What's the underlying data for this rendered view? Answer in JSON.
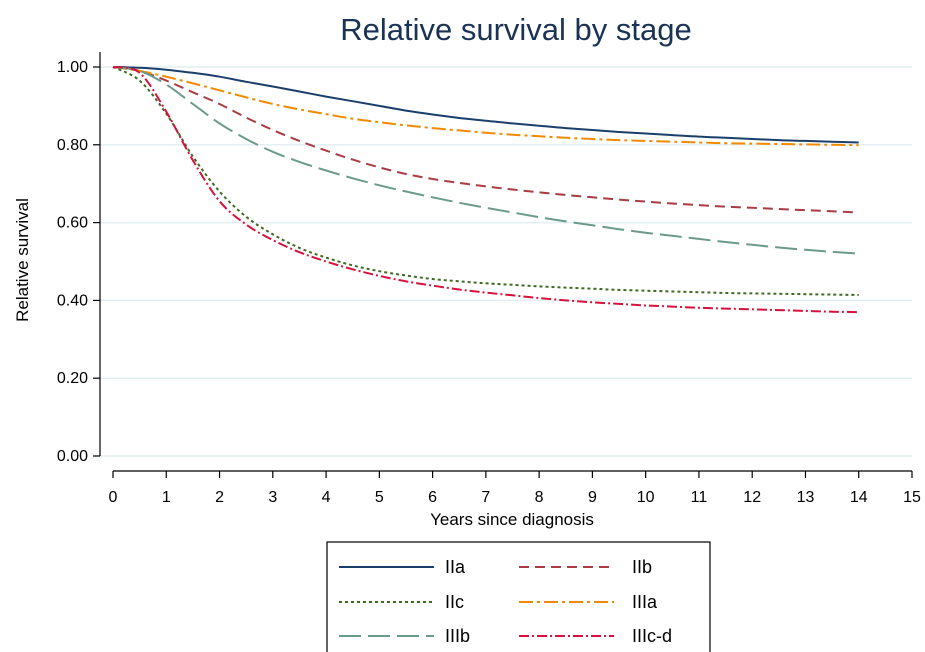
{
  "chart_data": {
    "type": "line",
    "title": "Relative survival by stage",
    "xlabel": "Years since diagnosis",
    "ylabel": "Relative survival",
    "xlim": [
      0,
      15
    ],
    "ylim": [
      0,
      1
    ],
    "x_ticks": [
      0,
      1,
      2,
      3,
      4,
      5,
      6,
      7,
      8,
      9,
      10,
      11,
      12,
      13,
      14,
      15
    ],
    "y_ticks": [
      0,
      0.2,
      0.4,
      0.6,
      0.8,
      1.0
    ],
    "y_tick_labels": [
      "0.00",
      "0.20",
      "0.40",
      "0.60",
      "0.80",
      "1.00"
    ],
    "grid": "horizontal",
    "legend_placement": "bottom",
    "title_color": "#1a3355",
    "x": [
      0,
      0.5,
      1,
      1.5,
      2,
      2.5,
      3,
      3.5,
      4,
      4.5,
      5,
      5.5,
      6,
      6.5,
      7,
      7.5,
      8,
      8.5,
      9,
      9.5,
      10,
      10.5,
      11,
      11.5,
      12,
      12.5,
      13,
      13.5,
      14
    ],
    "series": [
      {
        "name": "IIa",
        "color": "#1a3f6b",
        "dash": "",
        "values": [
          1.0,
          0.998,
          0.993,
          0.985,
          0.975,
          0.962,
          0.95,
          0.937,
          0.924,
          0.912,
          0.9,
          0.888,
          0.878,
          0.869,
          0.862,
          0.855,
          0.849,
          0.843,
          0.838,
          0.833,
          0.829,
          0.825,
          0.821,
          0.818,
          0.815,
          0.812,
          0.81,
          0.808,
          0.806
        ]
      },
      {
        "name": "IIb",
        "color": "#a83c42",
        "dash": "10 6",
        "values": [
          1.0,
          0.99,
          0.965,
          0.935,
          0.905,
          0.87,
          0.838,
          0.81,
          0.785,
          0.762,
          0.742,
          0.725,
          0.712,
          0.702,
          0.693,
          0.685,
          0.678,
          0.671,
          0.665,
          0.659,
          0.654,
          0.649,
          0.645,
          0.641,
          0.638,
          0.635,
          0.632,
          0.629,
          0.626
        ]
      },
      {
        "name": "IIc",
        "color": "#3e6b20",
        "dash": "3 3",
        "values": [
          1.0,
          0.965,
          0.88,
          0.77,
          0.68,
          0.615,
          0.57,
          0.535,
          0.51,
          0.49,
          0.475,
          0.464,
          0.455,
          0.449,
          0.444,
          0.44,
          0.436,
          0.433,
          0.43,
          0.427,
          0.425,
          0.423,
          0.421,
          0.419,
          0.418,
          0.417,
          0.416,
          0.415,
          0.414
        ]
      },
      {
        "name": "IIIa",
        "color": "#f08a00",
        "dash": "14 4 3 4",
        "values": [
          1.0,
          0.99,
          0.975,
          0.958,
          0.94,
          0.922,
          0.905,
          0.891,
          0.879,
          0.867,
          0.858,
          0.85,
          0.843,
          0.837,
          0.831,
          0.826,
          0.822,
          0.818,
          0.815,
          0.812,
          0.81,
          0.808,
          0.806,
          0.804,
          0.803,
          0.802,
          0.801,
          0.8,
          0.799
        ]
      },
      {
        "name": "IIIb",
        "color": "#6a9a8a",
        "dash": "22 7",
        "values": [
          1.0,
          0.99,
          0.955,
          0.905,
          0.855,
          0.815,
          0.782,
          0.756,
          0.734,
          0.714,
          0.696,
          0.68,
          0.665,
          0.651,
          0.638,
          0.626,
          0.614,
          0.603,
          0.593,
          0.583,
          0.574,
          0.566,
          0.558,
          0.55,
          0.543,
          0.536,
          0.53,
          0.525,
          0.52
        ]
      },
      {
        "name": "IIIc-d",
        "color": "#d6123c",
        "dash": "10 3 2 3",
        "values": [
          1.0,
          0.985,
          0.885,
          0.76,
          0.655,
          0.595,
          0.555,
          0.524,
          0.5,
          0.48,
          0.463,
          0.449,
          0.438,
          0.428,
          0.42,
          0.413,
          0.406,
          0.4,
          0.395,
          0.391,
          0.387,
          0.384,
          0.381,
          0.379,
          0.377,
          0.375,
          0.373,
          0.371,
          0.37
        ]
      }
    ]
  }
}
